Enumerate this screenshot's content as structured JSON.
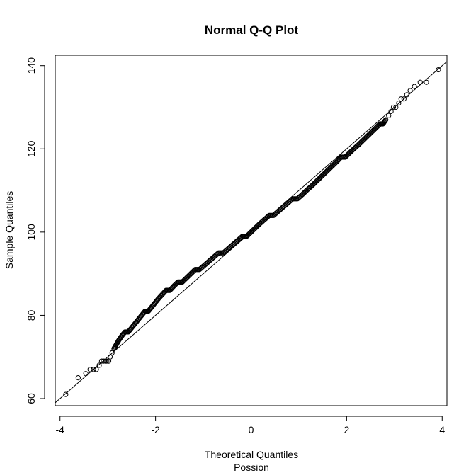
{
  "chart_data": {
    "type": "scatter",
    "title": "Normal Q-Q Plot",
    "xlabel": "Theoretical Quantiles",
    "xlabel2": "Possion",
    "ylabel": "Sample Quantiles",
    "xlim": [
      -4.1,
      4.1
    ],
    "ylim": [
      58.3,
      142.5
    ],
    "x_ticks": [
      -4,
      -2,
      0,
      2,
      4
    ],
    "x_tick_labels": [
      "-4",
      "-2",
      "0",
      "2",
      "4"
    ],
    "y_ticks": [
      60,
      80,
      100,
      120,
      140
    ],
    "y_tick_labels": [
      "60",
      "80",
      "100",
      "120",
      "140"
    ],
    "grid": false,
    "legend": "none",
    "marker": "open-circle",
    "reference_line": {
      "slope": 10.0,
      "intercept": 100.0
    },
    "series": [
      {
        "x": [
          -3.88,
          -3.62,
          -3.46,
          -3.37,
          -3.3,
          -3.24,
          -3.18,
          -3.13,
          -3.09,
          -3.05,
          -3.02,
          -2.98,
          -2.95,
          -2.91,
          -2.87,
          -2.82,
          -2.77,
          -2.71,
          -2.64,
          -2.57,
          -2.5,
          -2.43,
          -2.36,
          -2.29,
          -2.22,
          -2.15,
          -2.08,
          -2.01,
          -1.94,
          -1.86,
          -1.78,
          -1.7,
          -1.62,
          -1.53,
          -1.44,
          -1.35,
          -1.26,
          -1.17,
          -1.08,
          -0.98,
          -0.88,
          -0.78,
          -0.68,
          -0.58,
          -0.48,
          -0.38,
          -0.28,
          -0.18,
          -0.09,
          0.0,
          0.09,
          0.18,
          0.28,
          0.38,
          0.47,
          0.57,
          0.67,
          0.77,
          0.87,
          0.97,
          1.07,
          1.16,
          1.26,
          1.35,
          1.44,
          1.53,
          1.62,
          1.71,
          1.8,
          1.88,
          1.97,
          2.06,
          2.15,
          2.25,
          2.34,
          2.43,
          2.52,
          2.61,
          2.7,
          2.76,
          2.82,
          2.88,
          2.93,
          2.98,
          3.03,
          3.09,
          3.14,
          3.2,
          3.26,
          3.33,
          3.42,
          3.54,
          3.67,
          3.92
        ],
        "y": [
          61,
          65,
          66,
          67,
          67,
          67,
          68,
          69,
          69,
          69,
          69,
          69,
          70,
          71,
          72,
          73,
          74,
          75,
          76,
          76,
          77,
          78,
          79,
          80,
          81,
          81,
          82,
          83,
          84,
          85,
          86,
          86,
          87,
          88,
          88,
          89,
          90,
          91,
          91,
          92,
          93,
          94,
          95,
          95,
          96,
          97,
          98,
          99,
          99,
          100,
          101,
          102,
          103,
          104,
          104,
          105,
          106,
          107,
          108,
          108,
          109,
          110,
          111,
          112,
          113,
          114,
          115,
          116,
          117,
          118,
          118,
          119,
          120,
          121,
          122,
          123,
          124,
          125,
          126,
          126,
          127,
          128,
          129,
          130,
          130,
          131,
          132,
          132,
          133,
          134,
          135,
          136,
          136,
          139
        ]
      }
    ]
  }
}
